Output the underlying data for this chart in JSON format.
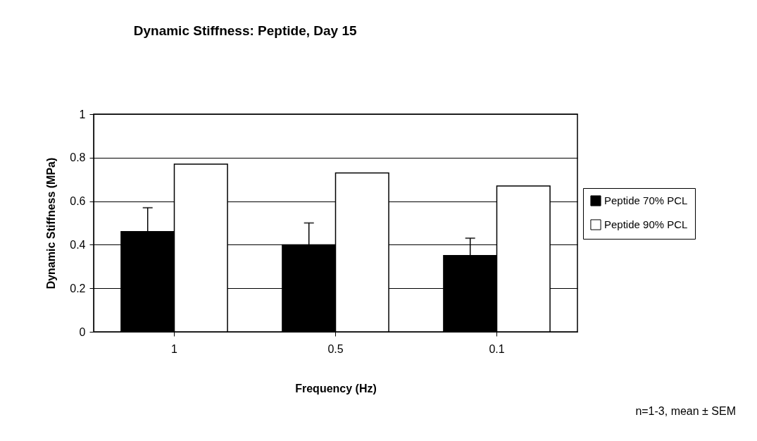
{
  "chart_data": {
    "type": "bar",
    "title": "Dynamic Stiffness: Peptide, Day 15",
    "xlabel": "Frequency (Hz)",
    "ylabel": "Dynamic Stiffness (MPa)",
    "categories": [
      "1",
      "0.5",
      "0.1"
    ],
    "series": [
      {
        "name": "Peptide 70% PCL",
        "color": "#000000",
        "values": [
          0.46,
          0.4,
          0.35
        ],
        "errors": [
          [
            0.46,
            0.57
          ],
          [
            0.4,
            0.5
          ],
          [
            0.35,
            0.43
          ]
        ]
      },
      {
        "name": "Peptide 90% PCL",
        "color": "#ffffff",
        "values": [
          0.77,
          0.73,
          0.67
        ]
      }
    ],
    "ylim": [
      0,
      1
    ],
    "yticks": [
      0,
      0.2,
      0.4,
      0.6,
      0.8,
      1
    ],
    "grid": "y",
    "legend": "right",
    "annotations": [
      "n=1-3, mean ± SEM"
    ]
  }
}
